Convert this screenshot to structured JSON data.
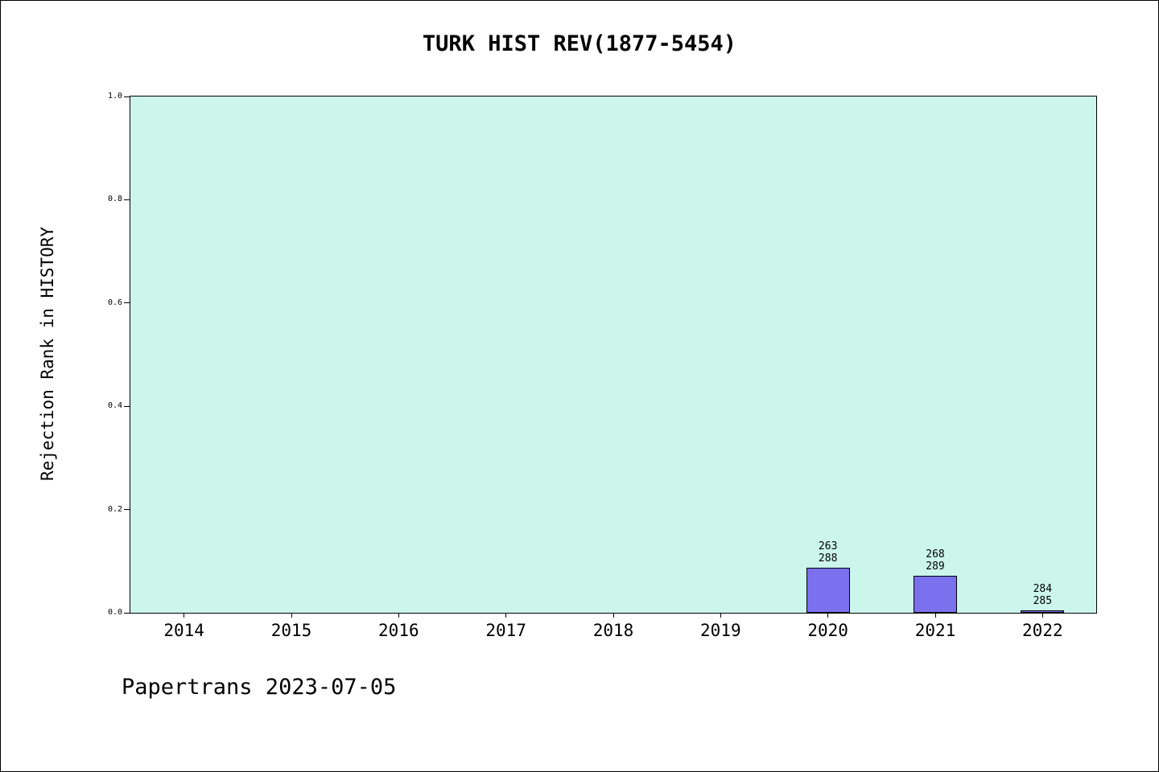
{
  "title": "TURK HIST REV(1877-5454)",
  "footer": "Papertrans 2023-07-05",
  "chart_data": {
    "type": "bar",
    "title": "TURK HIST REV(1877-5454)",
    "xlabel": "",
    "ylabel": "Rejection Rank in HISTORY",
    "categories": [
      "2014",
      "2015",
      "2016",
      "2017",
      "2018",
      "2019",
      "2020",
      "2021",
      "2022"
    ],
    "values": [
      null,
      null,
      null,
      null,
      null,
      null,
      0.087,
      0.072,
      0.004
    ],
    "bar_labels": [
      null,
      null,
      null,
      null,
      null,
      null,
      [
        "263",
        "288"
      ],
      [
        "268",
        "289"
      ],
      [
        "284",
        "285"
      ]
    ],
    "ylim": [
      0.0,
      1.0
    ],
    "yticks": [
      "1.0",
      "0.8",
      "0.6",
      "0.4",
      "0.2",
      "0.0"
    ],
    "grid": false,
    "legend_position": "none",
    "bar_color": "#7b70ee",
    "bar_edge_color": "#000000",
    "plot_background_color": "#ccf5ec"
  }
}
